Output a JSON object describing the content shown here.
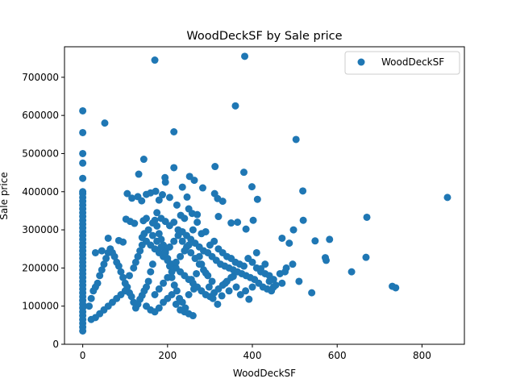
{
  "chart_data": {
    "type": "scatter",
    "title": "WoodDeckSF by Sale price",
    "xlabel": "WoodDeckSF",
    "ylabel": "Sale price",
    "xlim": [
      -43,
      900
    ],
    "ylim": [
      0,
      780000
    ],
    "xticks": [
      0,
      200,
      400,
      600,
      800
    ],
    "yticks": [
      0,
      100000,
      200000,
      300000,
      400000,
      500000,
      600000,
      700000
    ],
    "grid": false,
    "legend_position": "top-right",
    "series": [
      {
        "name": "WoodDeckSF",
        "color": "#1f77b4",
        "points": [
          [
            0,
            612000
          ],
          [
            0,
            555000
          ],
          [
            0,
            500000
          ],
          [
            0,
            475000
          ],
          [
            0,
            435000
          ],
          [
            0,
            400000
          ],
          [
            0,
            395000
          ],
          [
            0,
            385000
          ],
          [
            0,
            375000
          ],
          [
            0,
            365000
          ],
          [
            0,
            355000
          ],
          [
            0,
            345000
          ],
          [
            0,
            335000
          ],
          [
            0,
            325000
          ],
          [
            0,
            315000
          ],
          [
            0,
            305000
          ],
          [
            0,
            295000
          ],
          [
            0,
            285000
          ],
          [
            0,
            275000
          ],
          [
            0,
            265000
          ],
          [
            0,
            255000
          ],
          [
            0,
            245000
          ],
          [
            0,
            235000
          ],
          [
            0,
            225000
          ],
          [
            0,
            215000
          ],
          [
            0,
            205000
          ],
          [
            0,
            195000
          ],
          [
            0,
            185000
          ],
          [
            0,
            175000
          ],
          [
            0,
            165000
          ],
          [
            0,
            155000
          ],
          [
            0,
            145000
          ],
          [
            0,
            135000
          ],
          [
            0,
            125000
          ],
          [
            0,
            115000
          ],
          [
            0,
            105000
          ],
          [
            0,
            95000
          ],
          [
            0,
            85000
          ],
          [
            0,
            75000
          ],
          [
            0,
            65000
          ],
          [
            0,
            55000
          ],
          [
            0,
            45000
          ],
          [
            0,
            35000
          ],
          [
            52,
            580000
          ],
          [
            170,
            745000
          ],
          [
            382,
            755000
          ],
          [
            360,
            625000
          ],
          [
            215,
            557000
          ],
          [
            503,
            537000
          ],
          [
            144,
            485000
          ],
          [
            215,
            463000
          ],
          [
            312,
            466000
          ],
          [
            380,
            451000
          ],
          [
            194,
            437000
          ],
          [
            252,
            440000
          ],
          [
            132,
            446000
          ],
          [
            263,
            430000
          ],
          [
            399,
            413000
          ],
          [
            283,
            410000
          ],
          [
            195,
            425000
          ],
          [
            235,
            412000
          ],
          [
            311,
            395000
          ],
          [
            519,
            402000
          ],
          [
            860,
            385000
          ],
          [
            130,
            387000
          ],
          [
            105,
            395000
          ],
          [
            150,
            393000
          ],
          [
            160,
            397000
          ],
          [
            172,
            401000
          ],
          [
            188,
            392000
          ],
          [
            205,
            385000
          ],
          [
            318,
            382000
          ],
          [
            330,
            375000
          ],
          [
            412,
            380000
          ],
          [
            246,
            386000
          ],
          [
            116,
            383000
          ],
          [
            139,
            376000
          ],
          [
            180,
            378000
          ],
          [
            222,
            365000
          ],
          [
            250,
            355000
          ],
          [
            258,
            343000
          ],
          [
            240,
            330000
          ],
          [
            231,
            338000
          ],
          [
            270,
            340000
          ],
          [
            320,
            335000
          ],
          [
            350,
            318000
          ],
          [
            365,
            320000
          ],
          [
            385,
            302000
          ],
          [
            402,
            325000
          ],
          [
            520,
            325000
          ],
          [
            497,
            300000
          ],
          [
            470,
            278000
          ],
          [
            487,
            265000
          ],
          [
            670,
            333000
          ],
          [
            582,
            275000
          ],
          [
            548,
            271000
          ],
          [
            572,
            227000
          ],
          [
            574,
            220000
          ],
          [
            668,
            228000
          ],
          [
            634,
            190000
          ],
          [
            477,
            190000
          ],
          [
            510,
            165000
          ],
          [
            540,
            135000
          ],
          [
            470,
            160000
          ],
          [
            450,
            170000
          ],
          [
            440,
            180000
          ],
          [
            430,
            210000
          ],
          [
            420,
            198000
          ],
          [
            410,
            240000
          ],
          [
            400,
            150000
          ],
          [
            392,
            118000
          ],
          [
            384,
            140000
          ],
          [
            372,
            130000
          ],
          [
            362,
            150000
          ],
          [
            355,
            178000
          ],
          [
            345,
            140000
          ],
          [
            336,
            160000
          ],
          [
            328,
            127000
          ],
          [
            318,
            105000
          ],
          [
            307,
            120000
          ],
          [
            298,
            150000
          ],
          [
            290,
            187000
          ],
          [
            280,
            210000
          ],
          [
            275,
            230000
          ],
          [
            268,
            185000
          ],
          [
            262,
            145000
          ],
          [
            256,
            170000
          ],
          [
            250,
            130000
          ],
          [
            242,
            95000
          ],
          [
            235,
            110000
          ],
          [
            228,
            120000
          ],
          [
            222,
            140000
          ],
          [
            216,
            155000
          ],
          [
            210,
            175000
          ],
          [
            205,
            205000
          ],
          [
            200,
            225000
          ],
          [
            195,
            245000
          ],
          [
            190,
            260000
          ],
          [
            185,
            275000
          ],
          [
            180,
            290000
          ],
          [
            175,
            310000
          ],
          [
            170,
            325000
          ],
          [
            165,
            210000
          ],
          [
            160,
            190000
          ],
          [
            155,
            165000
          ],
          [
            150,
            150000
          ],
          [
            145,
            140000
          ],
          [
            140,
            128000
          ],
          [
            135,
            118000
          ],
          [
            130,
            105000
          ],
          [
            125,
            95000
          ],
          [
            120,
            110000
          ],
          [
            115,
            125000
          ],
          [
            110,
            135000
          ],
          [
            105,
            150000
          ],
          [
            100,
            160000
          ],
          [
            95,
            175000
          ],
          [
            90,
            190000
          ],
          [
            85,
            205000
          ],
          [
            80,
            215000
          ],
          [
            75,
            230000
          ],
          [
            70,
            240000
          ],
          [
            65,
            250000
          ],
          [
            60,
            240000
          ],
          [
            55,
            225000
          ],
          [
            50,
            210000
          ],
          [
            45,
            195000
          ],
          [
            40,
            180000
          ],
          [
            35,
            160000
          ],
          [
            30,
            150000
          ],
          [
            25,
            140000
          ],
          [
            20,
            120000
          ],
          [
            15,
            100000
          ],
          [
            30,
            240000
          ],
          [
            45,
            245000
          ],
          [
            60,
            278000
          ],
          [
            85,
            272000
          ],
          [
            95,
            268000
          ],
          [
            102,
            328000
          ],
          [
            112,
            322000
          ],
          [
            122,
            317000
          ],
          [
            143,
            324000
          ],
          [
            150,
            330000
          ],
          [
            165,
            318000
          ],
          [
            175,
            345000
          ],
          [
            185,
            330000
          ],
          [
            195,
            322000
          ],
          [
            205,
            311000
          ],
          [
            215,
            320000
          ],
          [
            225,
            300000
          ],
          [
            235,
            295000
          ],
          [
            245,
            285000
          ],
          [
            255,
            275000
          ],
          [
            265,
            265000
          ],
          [
            275,
            255000
          ],
          [
            285,
            245000
          ],
          [
            295,
            240000
          ],
          [
            305,
            230000
          ],
          [
            315,
            220000
          ],
          [
            325,
            210000
          ],
          [
            335,
            205000
          ],
          [
            345,
            200000
          ],
          [
            355,
            195000
          ],
          [
            365,
            190000
          ],
          [
            375,
            185000
          ],
          [
            385,
            180000
          ],
          [
            395,
            175000
          ],
          [
            405,
            170000
          ],
          [
            415,
            160000
          ],
          [
            425,
            150000
          ],
          [
            435,
            145000
          ],
          [
            445,
            140000
          ],
          [
            455,
            155000
          ],
          [
            465,
            185000
          ],
          [
            480,
            200000
          ],
          [
            495,
            210000
          ],
          [
            730,
            152000
          ],
          [
            738,
            148000
          ],
          [
            140,
            280000
          ],
          [
            150,
            270000
          ],
          [
            160,
            260000
          ],
          [
            170,
            250000
          ],
          [
            180,
            240000
          ],
          [
            190,
            230000
          ],
          [
            200,
            220000
          ],
          [
            210,
            210000
          ],
          [
            220,
            200000
          ],
          [
            230,
            190000
          ],
          [
            240,
            180000
          ],
          [
            250,
            170000
          ],
          [
            260,
            160000
          ],
          [
            270,
            150000
          ],
          [
            280,
            140000
          ],
          [
            290,
            130000
          ],
          [
            300,
            125000
          ],
          [
            310,
            135000
          ],
          [
            320,
            145000
          ],
          [
            330,
            155000
          ],
          [
            340,
            165000
          ],
          [
            350,
            175000
          ],
          [
            120,
            200000
          ],
          [
            125,
            215000
          ],
          [
            130,
            230000
          ],
          [
            135,
            245000
          ],
          [
            140,
            260000
          ],
          [
            145,
            290000
          ],
          [
            155,
            300000
          ],
          [
            165,
            285000
          ],
          [
            175,
            270000
          ],
          [
            185,
            255000
          ],
          [
            195,
            240000
          ],
          [
            205,
            255000
          ],
          [
            215,
            270000
          ],
          [
            225,
            285000
          ],
          [
            235,
            270000
          ],
          [
            245,
            255000
          ],
          [
            255,
            240000
          ],
          [
            265,
            225000
          ],
          [
            275,
            210000
          ],
          [
            285,
            195000
          ],
          [
            295,
            180000
          ],
          [
            305,
            165000
          ],
          [
            110,
            180000
          ],
          [
            100,
            140000
          ],
          [
            90,
            130000
          ],
          [
            80,
            120000
          ],
          [
            70,
            110000
          ],
          [
            60,
            100000
          ],
          [
            50,
            90000
          ],
          [
            40,
            80000
          ],
          [
            30,
            70000
          ],
          [
            20,
            65000
          ],
          [
            150,
            100000
          ],
          [
            160,
            90000
          ],
          [
            170,
            85000
          ],
          [
            180,
            95000
          ],
          [
            190,
            110000
          ],
          [
            200,
            120000
          ],
          [
            210,
            130000
          ],
          [
            220,
            105000
          ],
          [
            230,
            90000
          ],
          [
            240,
            85000
          ],
          [
            250,
            80000
          ],
          [
            260,
            75000
          ],
          [
            170,
            130000
          ],
          [
            180,
            145000
          ],
          [
            190,
            160000
          ],
          [
            200,
            175000
          ],
          [
            210,
            190000
          ],
          [
            220,
            215000
          ],
          [
            230,
            230000
          ],
          [
            240,
            245000
          ],
          [
            250,
            260000
          ],
          [
            260,
            300000
          ],
          [
            270,
            320000
          ],
          [
            280,
            290000
          ],
          [
            290,
            295000
          ],
          [
            300,
            260000
          ],
          [
            310,
            270000
          ],
          [
            320,
            250000
          ],
          [
            330,
            240000
          ],
          [
            340,
            230000
          ],
          [
            350,
            225000
          ],
          [
            360,
            215000
          ],
          [
            370,
            210000
          ],
          [
            380,
            205000
          ],
          [
            390,
            225000
          ],
          [
            400,
            215000
          ],
          [
            410,
            200000
          ],
          [
            420,
            190000
          ],
          [
            430,
            185000
          ],
          [
            440,
            165000
          ],
          [
            450,
            150000
          ]
        ]
      }
    ]
  }
}
